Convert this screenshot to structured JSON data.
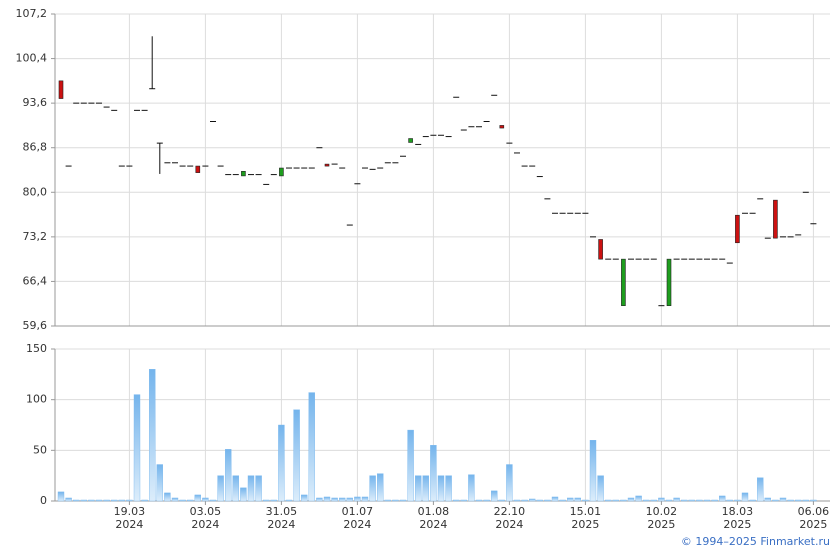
{
  "chart_data": [
    {
      "type": "candlestick",
      "open": [
        97,
        84,
        93.6,
        93.6,
        93.6,
        93.6,
        93.0,
        92.5,
        84,
        84,
        92.5,
        92.5,
        95.8,
        87.5,
        84.5,
        84.5,
        84,
        84,
        84,
        84,
        90.8,
        84,
        82.7,
        82.7,
        82.5,
        82.7,
        82.7,
        81.2,
        82.7,
        82.5,
        83.7,
        83.7,
        83.7,
        83.7,
        86.8,
        84.3,
        84.3,
        83.7,
        75.0,
        81.3,
        83.7,
        83.5,
        83.7,
        84.5,
        84.5,
        85.5,
        87.6,
        87.3,
        88.5,
        88.7,
        88.7,
        88.5,
        94.5,
        89.5,
        90.0,
        90.0,
        90.8,
        94.8,
        90.2,
        87.5,
        86.0,
        84,
        84,
        82.4,
        79,
        76.8,
        76.8,
        76.8,
        76.8,
        76.8,
        73.2,
        72.8,
        69.8,
        69.8,
        62.7,
        69.8,
        69.8,
        69.8,
        69.8,
        62.7,
        62.7,
        69.8,
        69.8,
        69.8,
        69.8,
        69.8,
        69.8,
        69.8,
        69.2,
        76.5,
        76.8,
        76.8,
        79,
        73,
        78.8,
        73.2,
        73.2,
        73.5,
        80,
        75.2
      ],
      "high": [
        97,
        84,
        93.6,
        93.6,
        93.6,
        93.6,
        93.0,
        92.5,
        84,
        84,
        92.5,
        92.5,
        103.8,
        87.5,
        84.5,
        84.5,
        84,
        84,
        84,
        84,
        90.8,
        84,
        82.7,
        82.7,
        83.2,
        82.7,
        82.7,
        81.2,
        82.7,
        83.7,
        83.7,
        83.7,
        83.7,
        83.7,
        86.8,
        84.3,
        84.3,
        83.7,
        75.0,
        81.3,
        83.7,
        83.5,
        83.7,
        84.5,
        84.5,
        85.5,
        88.2,
        87.3,
        88.5,
        88.7,
        88.7,
        88.5,
        94.5,
        89.5,
        90.0,
        90.0,
        90.8,
        94.8,
        90.2,
        87.5,
        86.0,
        84,
        84,
        82.4,
        79,
        76.8,
        76.8,
        76.8,
        76.8,
        76.8,
        73.2,
        72.8,
        69.8,
        69.8,
        69.8,
        69.8,
        69.8,
        69.8,
        69.8,
        62.7,
        69.8,
        69.8,
        69.8,
        69.8,
        69.8,
        69.8,
        69.8,
        69.8,
        69.2,
        76.5,
        76.8,
        76.8,
        79,
        73,
        78.8,
        73.2,
        73.2,
        73.5,
        80,
        75.2
      ],
      "low": [
        94.3,
        84,
        93.6,
        93.6,
        93.6,
        93.6,
        93.0,
        92.5,
        84,
        84,
        92.5,
        92.5,
        95.8,
        82.8,
        84.5,
        84.5,
        84,
        84,
        83.0,
        84,
        90.8,
        84,
        82.7,
        82.7,
        82.5,
        82.7,
        82.7,
        81.2,
        82.7,
        82.5,
        83.7,
        83.7,
        83.7,
        83.7,
        86.8,
        84.0,
        84.3,
        83.7,
        75.0,
        81.3,
        83.7,
        83.5,
        83.7,
        84.5,
        84.5,
        85.5,
        87.6,
        87.3,
        88.5,
        88.7,
        88.7,
        88.5,
        94.5,
        89.5,
        90.0,
        90.0,
        90.8,
        94.8,
        89.8,
        87.5,
        86.0,
        84,
        84,
        82.4,
        79,
        76.8,
        76.8,
        76.8,
        76.8,
        76.8,
        73.2,
        69.8,
        69.8,
        69.8,
        62.7,
        69.8,
        69.8,
        69.8,
        69.8,
        62.7,
        62.7,
        69.8,
        69.8,
        69.8,
        69.8,
        69.8,
        69.8,
        69.8,
        69.2,
        72.3,
        76.8,
        76.8,
        79,
        73,
        73,
        73.2,
        73.2,
        73.5,
        80,
        75.2
      ],
      "close": [
        94.3,
        84,
        93.6,
        93.6,
        93.6,
        93.6,
        93.0,
        92.5,
        84,
        84,
        92.5,
        92.5,
        95.8,
        87.5,
        84.5,
        84.5,
        84,
        84,
        83.0,
        84,
        90.8,
        84,
        82.7,
        82.7,
        83.2,
        82.7,
        82.7,
        81.2,
        82.7,
        83.7,
        83.7,
        83.7,
        83.7,
        83.7,
        86.8,
        84.0,
        84.3,
        83.7,
        75.0,
        81.3,
        83.7,
        83.5,
        83.7,
        84.5,
        84.5,
        85.5,
        88.2,
        87.3,
        88.5,
        88.7,
        88.7,
        88.5,
        94.5,
        89.5,
        90.0,
        90.0,
        90.8,
        94.8,
        89.8,
        87.5,
        86.0,
        84,
        84,
        82.4,
        79,
        76.8,
        76.8,
        76.8,
        76.8,
        76.8,
        73.2,
        69.8,
        69.8,
        69.8,
        69.8,
        69.8,
        69.8,
        69.8,
        69.8,
        62.7,
        69.8,
        69.8,
        69.8,
        69.8,
        69.8,
        69.8,
        69.8,
        69.8,
        69.2,
        72.3,
        76.8,
        76.8,
        79,
        73,
        73,
        73.2,
        73.2,
        73.5,
        80,
        75.2
      ],
      "up_color": "#1e9e1e",
      "down_color": "#cc1111",
      "ylim": [
        59.6,
        107.2
      ],
      "yticks": [
        {
          "value": 59.6,
          "label": "59,6"
        },
        {
          "value": 66.4,
          "label": "66,4"
        },
        {
          "value": 73.2,
          "label": "73,2"
        },
        {
          "value": 80.0,
          "label": "80,0"
        },
        {
          "value": 86.8,
          "label": "86,8"
        },
        {
          "value": 93.6,
          "label": "93,6"
        },
        {
          "value": 100.4,
          "label": "100,4"
        },
        {
          "value": 107.2,
          "label": "107,2"
        }
      ],
      "grid": true
    },
    {
      "type": "bar",
      "categories": [
        null,
        null,
        null,
        null,
        null,
        null,
        null,
        null,
        null,
        [
          "19.03",
          "2024"
        ],
        null,
        null,
        null,
        null,
        null,
        null,
        null,
        null,
        null,
        [
          "03.05",
          "2024"
        ],
        null,
        null,
        null,
        null,
        null,
        null,
        null,
        null,
        null,
        [
          "31.05",
          "2024"
        ],
        null,
        null,
        null,
        null,
        null,
        null,
        null,
        null,
        null,
        [
          "01.07",
          "2024"
        ],
        null,
        null,
        null,
        null,
        null,
        null,
        null,
        null,
        null,
        [
          "01.08",
          "2024"
        ],
        null,
        null,
        null,
        null,
        null,
        null,
        null,
        null,
        null,
        [
          "22.10",
          "2024"
        ],
        null,
        null,
        null,
        null,
        null,
        null,
        null,
        null,
        null,
        [
          "15.01",
          "2025"
        ],
        null,
        null,
        null,
        null,
        null,
        null,
        null,
        null,
        null,
        [
          "10.02",
          "2025"
        ],
        null,
        null,
        null,
        null,
        null,
        null,
        null,
        null,
        null,
        [
          "18.03",
          "2025"
        ],
        null,
        null,
        null,
        null,
        null,
        null,
        null,
        null,
        null,
        [
          "06.06",
          "2025"
        ]
      ],
      "values": [
        9,
        3,
        1,
        1,
        1,
        1,
        1,
        1,
        1,
        1,
        105,
        1,
        130,
        36,
        8,
        3,
        1,
        1,
        6,
        3,
        1,
        25,
        51,
        25,
        13,
        25,
        25,
        1,
        1,
        75,
        1,
        90,
        6,
        107,
        3,
        4,
        3,
        3,
        3,
        4,
        4,
        25,
        27,
        1,
        1,
        1,
        70,
        25,
        25,
        55,
        25,
        25,
        1,
        1,
        26,
        1,
        1,
        10,
        1,
        36,
        1,
        1,
        2,
        1,
        1,
        4,
        1,
        3,
        3,
        1,
        60,
        25,
        1,
        1,
        1,
        3,
        5,
        1,
        1,
        3,
        1,
        3,
        1,
        1,
        1,
        1,
        1,
        5,
        1,
        1,
        8,
        1,
        23,
        3,
        1,
        3,
        1,
        1,
        1,
        1
      ],
      "color": "#7ab8ee",
      "ylim": [
        0,
        150
      ],
      "yticks": [
        0,
        50,
        100,
        150
      ],
      "grid": true
    }
  ],
  "footer": "© 1994–2025 Finmarket.ru"
}
